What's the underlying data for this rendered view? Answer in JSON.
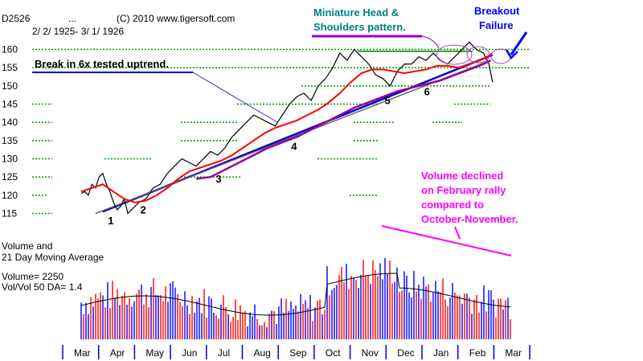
{
  "header": {
    "ticker": "D2526",
    "ellipsis": "...",
    "copyright": "(C) 2010 www.tigersoft.com",
    "date_range": "2/ 2/ 1925- 3/ 1/ 1926"
  },
  "chart_data": [
    {
      "type": "line",
      "title": "",
      "x_categories": [
        "Mar",
        "Apr",
        "May",
        "Jun",
        "Jul",
        "Aug",
        "Sep",
        "Oct",
        "Nov",
        "Dec",
        "Jan",
        "Feb",
        "Mar"
      ],
      "ylim": [
        115,
        160
      ],
      "y_ticks": [
        115,
        120,
        125,
        130,
        135,
        140,
        145,
        150,
        155,
        160
      ],
      "series": [
        {
          "color": "#000000",
          "x": [
            0,
            0.1,
            0.2,
            0.3,
            0.4,
            0.5,
            0.6,
            0.7,
            0.8,
            0.9,
            1.0,
            1.1,
            1.2,
            1.3,
            1.4,
            1.5,
            1.6,
            1.8,
            2.0,
            2.2,
            2.4,
            2.6,
            2.8,
            3.0,
            3.2,
            3.4,
            3.6,
            3.8,
            4.0,
            4.2,
            4.4,
            4.6,
            4.8,
            5.0,
            5.2,
            5.4,
            5.6,
            5.8,
            6.0,
            6.2,
            6.4,
            6.6,
            6.8,
            7.0,
            7.2,
            7.4,
            7.6,
            7.8,
            8.0,
            8.2,
            8.4,
            8.6,
            8.8,
            9.0,
            9.2,
            9.4,
            9.6,
            9.8,
            10.0,
            10.2,
            10.4,
            10.6,
            10.8,
            11.0,
            11.2,
            11.35,
            11.45
          ],
          "values": [
            120.5,
            121,
            120,
            123,
            122,
            125,
            126,
            123,
            121,
            118,
            116,
            117,
            119,
            115,
            116,
            117,
            118,
            119,
            122,
            123,
            126,
            128,
            130,
            129,
            128,
            130,
            132,
            131,
            133,
            136,
            138,
            140,
            142,
            141,
            140,
            139,
            142,
            145,
            147,
            148,
            146,
            150,
            152,
            155,
            159,
            157,
            160,
            158,
            156,
            153,
            152,
            150,
            154,
            156,
            156,
            158,
            157,
            159,
            157,
            156,
            158,
            160,
            162,
            160,
            159,
            156,
            151
          ]
        },
        {
          "color": "#ff0000",
          "x": [
            0,
            0.3,
            0.6,
            0.9,
            1.2,
            1.5,
            1.8,
            2.1,
            2.4,
            2.7,
            3.0,
            3.3,
            3.6,
            3.9,
            4.2,
            4.5,
            4.8,
            5.1,
            5.4,
            5.7,
            6.0,
            6.3,
            6.6,
            6.9,
            7.2,
            7.5,
            7.8,
            8.1,
            8.4,
            8.7,
            9.0,
            9.3,
            9.6,
            9.9,
            10.2,
            10.5,
            10.8,
            11.1,
            11.3,
            11.45
          ],
          "values": [
            121,
            122,
            123,
            121,
            119,
            118,
            118.5,
            120,
            122,
            124.5,
            126.5,
            127.5,
            128.5,
            129.5,
            131,
            133,
            135,
            137,
            138.5,
            139.5,
            140.5,
            142,
            143.5,
            145.5,
            148,
            151,
            153.5,
            154.5,
            154.5,
            154,
            153.5,
            154,
            154.5,
            155.5,
            155.5,
            155,
            156,
            157,
            158,
            159
          ]
        },
        {
          "color": "#990099",
          "x": [
            3.2,
            3.6,
            4.0,
            4.4,
            4.8,
            5.2,
            5.6,
            6.0,
            6.4,
            6.8,
            7.2,
            7.6,
            8.0,
            8.4,
            8.8,
            9.2,
            9.6,
            10.0,
            10.4,
            10.8,
            11.2,
            11.4
          ],
          "values": [
            124.5,
            125,
            127,
            129,
            131,
            133,
            134.5,
            136,
            138,
            140,
            142,
            144,
            145.5,
            147,
            148.5,
            149.5,
            150.5,
            151.5,
            153,
            154.5,
            156,
            157
          ]
        }
      ],
      "trendlines": [
        {
          "color": "#0000cc",
          "from": [
            0.6,
            115.5
          ],
          "to": [
            11.45,
            158.5
          ]
        },
        {
          "color": "#666666",
          "from": [
            0.4,
            115
          ],
          "to": [
            11.4,
            157
          ]
        },
        {
          "color": "#008800",
          "from": [
            7.7,
            159.5
          ],
          "to": [
            10.9,
            159.5
          ]
        }
      ],
      "touch_points": [
        {
          "label": "1",
          "x": 0.7,
          "value": 115.5
        },
        {
          "label": "2",
          "x": 1.6,
          "value": 118.5
        },
        {
          "label": "3",
          "x": 3.7,
          "value": 127
        },
        {
          "label": "4",
          "x": 5.8,
          "value": 136
        },
        {
          "label": "5",
          "x": 8.4,
          "value": 148.5
        },
        {
          "label": "6",
          "x": 9.5,
          "value": 151
        }
      ],
      "annotations": [
        {
          "text": "Break in 6x tested uptrend.",
          "color": "#000000"
        },
        {
          "text": "Miniature Head &",
          "color": "#008080"
        },
        {
          "text": "Shoulders pattern.",
          "color": "#008080"
        },
        {
          "text": "Breakout",
          "color": "#0000ff"
        },
        {
          "text": "Failure",
          "color": "#0000ff"
        },
        {
          "text": "Volume declined",
          "color": "#ff00ff"
        },
        {
          "text": "on February rally",
          "color": "#ff00ff"
        },
        {
          "text": "compared to",
          "color": "#ff00ff"
        },
        {
          "text": "October-November.",
          "color": "#ff00ff"
        }
      ]
    },
    {
      "type": "bar",
      "title": "Volume and",
      "subtitle": "21 Day Moving Average",
      "readouts": [
        "Volume= 2250",
        "Vol/Vol 50 DA= 1.4"
      ],
      "colors": {
        "up": "#0000ff",
        "down": "#ff0000",
        "ma": "#000000"
      }
    }
  ]
}
